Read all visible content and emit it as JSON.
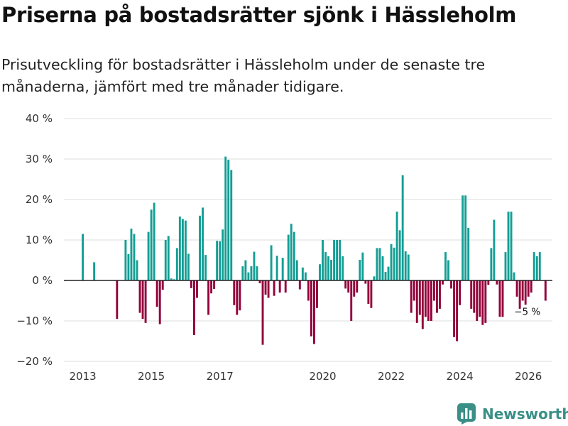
{
  "title": "Priserna på bostadsrätter sjönk i Hässleholm",
  "subtitle": "Prisutveckling för bostadsrätter i Hässleholm under de senaste tre månaderna, jämfört med tre månader tidigare.",
  "brand": {
    "name": "Newsworthy",
    "icon": "bar-chart-logo-icon"
  },
  "colors": {
    "positive": "#139e94",
    "negative": "#93003a",
    "grid": "#dddddd",
    "zero_line": "#222222"
  },
  "chart_data": {
    "type": "bar",
    "title": "Priserna på bostadsrätter sjönk i Hässleholm",
    "xlabel": "",
    "ylabel": "",
    "ylim": [
      -20,
      40
    ],
    "y_ticks": [
      40,
      30,
      20,
      10,
      0,
      -10,
      -20
    ],
    "y_tick_labels": [
      "40 %",
      "30 %",
      "20 %",
      "10 %",
      "0 %",
      "−10 %",
      "−20 %"
    ],
    "x_range": [
      2012.45,
      2026.7
    ],
    "x_ticks": [
      2013,
      2015,
      2017,
      2020,
      2022,
      2024,
      2026
    ],
    "x_tick_labels": [
      "2013",
      "2015",
      "2017",
      "2020",
      "2022",
      "2024",
      "2026"
    ],
    "start": 2013.0,
    "step": 0.08333,
    "unit": "% förändring",
    "values": [
      11.5,
      null,
      null,
      null,
      4.5,
      null,
      null,
      null,
      null,
      null,
      null,
      null,
      -9.5,
      null,
      null,
      10,
      6.5,
      12.8,
      11.5,
      5,
      -8,
      -9.5,
      -10.5,
      12,
      17.5,
      19.2,
      -6.5,
      -10.8,
      -2.3,
      10,
      11,
      0.5,
      0.3,
      8,
      15.8,
      15.2,
      14.8,
      6.6,
      -1.9,
      -13.5,
      -4.3,
      16,
      18,
      6.3,
      -8.5,
      -3.2,
      -2.1,
      9.8,
      9.7,
      12.6,
      30.6,
      29.8,
      27.3,
      -6.1,
      -8.5,
      -7.4,
      3.5,
      5,
      2,
      3.5,
      7.1,
      3.5,
      -0.7,
      -15.9,
      -3.5,
      -4.3,
      8.7,
      -3.8,
      6.1,
      -3,
      5.6,
      -3,
      11.3,
      14,
      12,
      5,
      -2.2,
      3.2,
      2,
      -5,
      -13.8,
      -15.7,
      -6.8,
      4,
      10,
      7,
      6,
      5.1,
      10,
      10,
      10,
      6,
      -2,
      -3,
      -10,
      -4,
      -3,
      5.1,
      6.9,
      -0.8,
      -5.8,
      -6.8,
      1,
      8,
      8,
      6,
      2.1,
      3.4,
      9,
      8.1,
      17,
      12.4,
      26,
      7.2,
      6.4,
      -8,
      -5,
      -10.5,
      -8.5,
      -12,
      -9,
      -10,
      -10,
      -5,
      -8,
      -7,
      -1,
      7,
      5,
      -2,
      -14,
      -15,
      -6.1,
      21,
      21,
      13,
      -7,
      -8,
      -10,
      -9,
      -11,
      -10.5,
      -1.1,
      8,
      15,
      -1,
      -9,
      -9,
      7,
      17,
      17,
      2,
      -4,
      -7,
      -5,
      -6,
      -4,
      -3,
      7,
      6,
      7,
      null,
      -5
    ],
    "annotations": [
      {
        "text": "−5 %",
        "x": 2026.0,
        "y": -5
      }
    ]
  }
}
